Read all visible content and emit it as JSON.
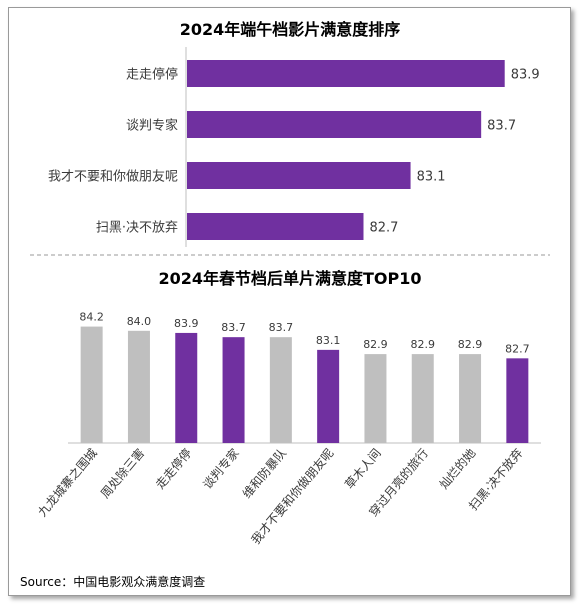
{
  "chart_data": [
    {
      "type": "bar",
      "orientation": "horizontal",
      "title": "2024年端午档影片满意度排序",
      "categories": [
        "走走停停",
        "谈判专家",
        "我才不要和你做朋友呢",
        "扫黑·决不放弃"
      ],
      "values": [
        83.9,
        83.7,
        83.1,
        82.7
      ],
      "value_labels": [
        "83.9",
        "83.7",
        "83.1",
        "82.7"
      ],
      "xlim": [
        81.2,
        84.2
      ],
      "bar_color": "#7030a0",
      "grid": false
    },
    {
      "type": "bar",
      "orientation": "vertical",
      "title": "2024年春节档后单片满意度TOP10",
      "categories": [
        "九龙城寨之围城",
        "周处除三害",
        "走走停停",
        "谈判专家",
        "维和防暴队",
        "我才不要和你做朋友呢",
        "草木人间",
        "穿过月亮的旅行",
        "灿烂的她",
        "扫黑·决不放弃"
      ],
      "values": [
        84.2,
        84.0,
        83.9,
        83.7,
        83.7,
        83.1,
        82.9,
        82.9,
        82.9,
        82.7
      ],
      "value_labels": [
        "84.2",
        "84.0",
        "83.9",
        "83.7",
        "83.7",
        "83.1",
        "82.9",
        "82.9",
        "82.9",
        "82.7"
      ],
      "highlighted": [
        false,
        false,
        true,
        true,
        false,
        true,
        false,
        false,
        false,
        true
      ],
      "ylim": [
        78.7,
        84.7
      ],
      "colors": {
        "highlight": "#7030a0",
        "default": "#bfbfbf"
      },
      "grid": false
    }
  ],
  "source": "Source：中国电影观众满意度调查"
}
